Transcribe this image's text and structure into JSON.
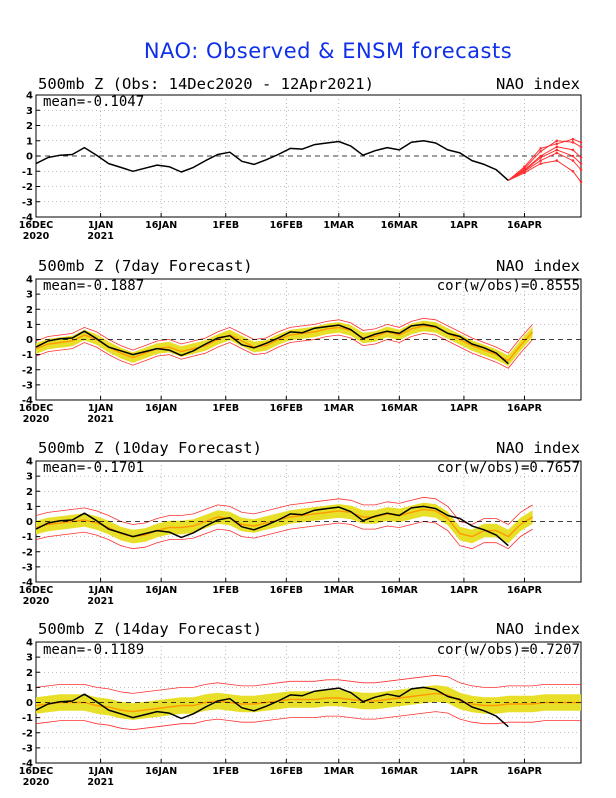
{
  "title": "NAO: Observed & ENSM forecasts",
  "panels": [
    {
      "title": "500mb Z (Obs: 14Dec2020 - 12Apr2021)",
      "right_label": "NAO index",
      "mean": "mean=-0.1047",
      "cor": ""
    },
    {
      "title": "500mb Z (7day Forecast)",
      "right_label": "NAO index",
      "mean": "mean=-0.1887",
      "cor": "cor(w/obs)=0.8555"
    },
    {
      "title": "500mb Z (10day Forecast)",
      "right_label": "NAO index",
      "mean": "mean=-0.1701",
      "cor": "cor(w/obs)=0.7657"
    },
    {
      "title": "500mb Z (14day Forecast)",
      "right_label": "NAO index",
      "mean": "mean=-0.1189",
      "cor": "cor(w/obs)=0.7207"
    }
  ],
  "colors": {
    "title": "#1030e8",
    "observed": "#000000",
    "forecast_members": "#ff3030",
    "ensemble_spread": "#e8e028",
    "ensemble_mean": "#ff9a00",
    "zero_line": "#000000"
  },
  "chart_data": [
    {
      "type": "line",
      "title": "500mb Z (Obs: 14Dec2020 - 12Apr2021)",
      "ylabel": "NAO index",
      "ylim": [
        -4,
        4
      ],
      "yticks": [
        "4",
        "3",
        "2",
        "1",
        "0",
        "-1",
        "-2",
        "-3",
        "-4"
      ],
      "xticks": [
        {
          "day": 0,
          "label": "16DEC",
          "sub": "2020"
        },
        {
          "day": 16,
          "label": "1JAN",
          "sub": "2021"
        },
        {
          "day": 31,
          "label": "16JAN",
          "sub": ""
        },
        {
          "day": 47,
          "label": "1FEB",
          "sub": ""
        },
        {
          "day": 62,
          "label": "16FEB",
          "sub": ""
        },
        {
          "day": 75,
          "label": "1MAR",
          "sub": ""
        },
        {
          "day": 90,
          "label": "16MAR",
          "sub": ""
        },
        {
          "day": 106,
          "label": "1APR",
          "sub": ""
        },
        {
          "day": 121,
          "label": "16APR",
          "sub": ""
        }
      ],
      "xlim": [
        0,
        135
      ],
      "grid": true,
      "observed": {
        "x": [
          0,
          3,
          6,
          9,
          12,
          15,
          18,
          21,
          24,
          27,
          30,
          33,
          36,
          39,
          42,
          45,
          48,
          51,
          54,
          57,
          60,
          63,
          66,
          69,
          72,
          75,
          78,
          81,
          84,
          87,
          90,
          93,
          96,
          99,
          102,
          105,
          108,
          111,
          114,
          117
        ],
        "y": [
          -0.5,
          -0.1,
          0.05,
          0.1,
          0.55,
          0.05,
          -0.5,
          -0.75,
          -1.0,
          -0.8,
          -0.6,
          -0.7,
          -1.05,
          -0.75,
          -0.3,
          0.1,
          0.25,
          -0.35,
          -0.55,
          -0.25,
          0.1,
          0.5,
          0.45,
          0.75,
          0.85,
          0.95,
          0.65,
          0.05,
          0.35,
          0.55,
          0.4,
          0.9,
          1.0,
          0.85,
          0.4,
          0.2,
          -0.3,
          -0.55,
          -0.9,
          -1.6
        ]
      },
      "forecast_members": [
        {
          "x": [
            117,
            121,
            125,
            129,
            133,
            135
          ],
          "y": [
            -1.6,
            -0.8,
            0.3,
            1.0,
            0.9,
            0.6
          ]
        },
        {
          "x": [
            117,
            121,
            125,
            129,
            133,
            135
          ],
          "y": [
            -1.6,
            -0.9,
            0.0,
            0.6,
            0.4,
            -0.1
          ]
        },
        {
          "x": [
            117,
            121,
            125,
            129,
            133,
            135
          ],
          "y": [
            -1.6,
            -1.0,
            -0.3,
            0.2,
            -0.3,
            -0.9
          ]
        },
        {
          "x": [
            117,
            121,
            125,
            129,
            133,
            135
          ],
          "y": [
            -1.6,
            -1.1,
            -0.5,
            -0.3,
            -1.0,
            -1.7
          ]
        },
        {
          "x": [
            117,
            121,
            125,
            129,
            133,
            135
          ],
          "y": [
            -1.6,
            -0.7,
            0.5,
            0.8,
            1.1,
            0.9
          ]
        },
        {
          "x": [
            117,
            121,
            125,
            129,
            133,
            135
          ],
          "y": [
            -1.6,
            -0.95,
            -0.1,
            0.4,
            0.0,
            -0.5
          ]
        }
      ]
    },
    {
      "type": "line",
      "title": "500mb Z (7day Forecast)",
      "ylabel": "NAO index",
      "ylim": [
        -4,
        4
      ],
      "yticks": [
        "4",
        "3",
        "2",
        "1",
        "0",
        "-1",
        "-2",
        "-3",
        "-4"
      ],
      "xticks": [
        {
          "day": 0,
          "label": "16DEC",
          "sub": "2020"
        },
        {
          "day": 16,
          "label": "1JAN",
          "sub": "2021"
        },
        {
          "day": 31,
          "label": "16JAN",
          "sub": ""
        },
        {
          "day": 47,
          "label": "1FEB",
          "sub": ""
        },
        {
          "day": 62,
          "label": "16FEB",
          "sub": ""
        },
        {
          "day": 75,
          "label": "1MAR",
          "sub": ""
        },
        {
          "day": 90,
          "label": "16MAR",
          "sub": ""
        },
        {
          "day": 106,
          "label": "1APR",
          "sub": ""
        },
        {
          "day": 121,
          "label": "16APR",
          "sub": ""
        }
      ],
      "xlim": [
        0,
        135
      ],
      "grid": true,
      "observed": {
        "x": [
          0,
          3,
          6,
          9,
          12,
          15,
          18,
          21,
          24,
          27,
          30,
          33,
          36,
          39,
          42,
          45,
          48,
          51,
          54,
          57,
          60,
          63,
          66,
          69,
          72,
          75,
          78,
          81,
          84,
          87,
          90,
          93,
          96,
          99,
          102,
          105,
          108,
          111,
          114,
          117
        ],
        "y": [
          -0.5,
          -0.1,
          0.05,
          0.1,
          0.55,
          0.05,
          -0.5,
          -0.75,
          -1.0,
          -0.8,
          -0.6,
          -0.7,
          -1.05,
          -0.75,
          -0.3,
          0.1,
          0.25,
          -0.35,
          -0.55,
          -0.25,
          0.1,
          0.5,
          0.45,
          0.75,
          0.85,
          0.95,
          0.65,
          0.05,
          0.35,
          0.55,
          0.4,
          0.9,
          1.0,
          0.85,
          0.4,
          0.2,
          -0.3,
          -0.55,
          -0.9,
          -1.6
        ]
      },
      "ensemble_mean": {
        "x": [
          0,
          3,
          6,
          9,
          12,
          15,
          18,
          21,
          24,
          27,
          30,
          33,
          36,
          39,
          42,
          45,
          48,
          51,
          54,
          57,
          60,
          63,
          66,
          69,
          72,
          75,
          78,
          81,
          84,
          87,
          90,
          93,
          96,
          99,
          102,
          105,
          108,
          111,
          114,
          117,
          120,
          123
        ],
        "y": [
          -0.6,
          -0.3,
          -0.2,
          -0.1,
          0.3,
          0.0,
          -0.5,
          -0.9,
          -1.2,
          -0.9,
          -0.6,
          -0.5,
          -0.8,
          -0.6,
          -0.4,
          0.0,
          0.3,
          -0.1,
          -0.5,
          -0.4,
          0.0,
          0.3,
          0.4,
          0.5,
          0.7,
          0.8,
          0.6,
          0.1,
          0.2,
          0.5,
          0.3,
          0.7,
          0.9,
          0.8,
          0.4,
          0.0,
          -0.4,
          -0.7,
          -1.0,
          -1.4,
          -0.4,
          0.5
        ]
      },
      "spread_half_width": 0.35,
      "members_band_half_width": 0.5
    },
    {
      "type": "line",
      "title": "500mb Z (10day Forecast)",
      "ylabel": "NAO index",
      "ylim": [
        -4,
        4
      ],
      "yticks": [
        "4",
        "3",
        "2",
        "1",
        "0",
        "-1",
        "-2",
        "-3",
        "-4"
      ],
      "xticks": [
        {
          "day": 0,
          "label": "16DEC",
          "sub": "2020"
        },
        {
          "day": 16,
          "label": "1JAN",
          "sub": "2021"
        },
        {
          "day": 31,
          "label": "16JAN",
          "sub": ""
        },
        {
          "day": 47,
          "label": "1FEB",
          "sub": ""
        },
        {
          "day": 62,
          "label": "16FEB",
          "sub": ""
        },
        {
          "day": 75,
          "label": "1MAR",
          "sub": ""
        },
        {
          "day": 90,
          "label": "16MAR",
          "sub": ""
        },
        {
          "day": 106,
          "label": "1APR",
          "sub": ""
        },
        {
          "day": 121,
          "label": "16APR",
          "sub": ""
        }
      ],
      "xlim": [
        0,
        135
      ],
      "grid": true,
      "observed": {
        "x": [
          0,
          3,
          6,
          9,
          12,
          15,
          18,
          21,
          24,
          27,
          30,
          33,
          36,
          39,
          42,
          45,
          48,
          51,
          54,
          57,
          60,
          63,
          66,
          69,
          72,
          75,
          78,
          81,
          84,
          87,
          90,
          93,
          96,
          99,
          102,
          105,
          108,
          111,
          114,
          117
        ],
        "y": [
          -0.5,
          -0.1,
          0.05,
          0.1,
          0.55,
          0.05,
          -0.5,
          -0.75,
          -1.0,
          -0.8,
          -0.6,
          -0.7,
          -1.05,
          -0.75,
          -0.3,
          0.1,
          0.25,
          -0.35,
          -0.55,
          -0.25,
          0.1,
          0.5,
          0.45,
          0.75,
          0.85,
          0.95,
          0.65,
          0.05,
          0.35,
          0.55,
          0.4,
          0.9,
          1.0,
          0.85,
          0.4,
          0.2,
          -0.3,
          -0.55,
          -0.9,
          -1.6
        ]
      },
      "ensemble_mean": {
        "x": [
          0,
          3,
          6,
          9,
          12,
          15,
          18,
          21,
          24,
          27,
          30,
          33,
          36,
          39,
          42,
          45,
          48,
          51,
          54,
          57,
          60,
          63,
          66,
          69,
          72,
          75,
          78,
          81,
          84,
          87,
          90,
          93,
          96,
          99,
          102,
          105,
          108,
          111,
          114,
          117,
          120,
          123
        ],
        "y": [
          -0.4,
          -0.2,
          -0.1,
          0.0,
          0.1,
          -0.1,
          -0.4,
          -0.8,
          -1.0,
          -0.9,
          -0.6,
          -0.4,
          -0.4,
          -0.3,
          0.0,
          0.3,
          0.2,
          -0.2,
          -0.3,
          -0.1,
          0.1,
          0.3,
          0.4,
          0.5,
          0.6,
          0.7,
          0.6,
          0.3,
          0.3,
          0.5,
          0.4,
          0.6,
          0.8,
          0.7,
          0.2,
          -0.8,
          -1.0,
          -0.6,
          -0.6,
          -1.0,
          -0.2,
          0.3
        ]
      },
      "spread_half_width": 0.45,
      "members_band_half_width": 0.8
    },
    {
      "type": "line",
      "title": "500mb Z (14day Forecast)",
      "ylabel": "NAO index",
      "ylim": [
        -4,
        4
      ],
      "yticks": [
        "4",
        "3",
        "2",
        "1",
        "0",
        "-1",
        "-2",
        "-3",
        "-4"
      ],
      "xticks": [
        {
          "day": 0,
          "label": "16DEC",
          "sub": "2020"
        },
        {
          "day": 16,
          "label": "1JAN",
          "sub": "2021"
        },
        {
          "day": 31,
          "label": "16JAN",
          "sub": ""
        },
        {
          "day": 47,
          "label": "1FEB",
          "sub": ""
        },
        {
          "day": 62,
          "label": "16FEB",
          "sub": ""
        },
        {
          "day": 75,
          "label": "1MAR",
          "sub": ""
        },
        {
          "day": 90,
          "label": "16MAR",
          "sub": ""
        },
        {
          "day": 106,
          "label": "1APR",
          "sub": ""
        },
        {
          "day": 121,
          "label": "16APR",
          "sub": ""
        }
      ],
      "xlim": [
        0,
        135
      ],
      "grid": true,
      "observed": {
        "x": [
          0,
          3,
          6,
          9,
          12,
          15,
          18,
          21,
          24,
          27,
          30,
          33,
          36,
          39,
          42,
          45,
          48,
          51,
          54,
          57,
          60,
          63,
          66,
          69,
          72,
          75,
          78,
          81,
          84,
          87,
          90,
          93,
          96,
          99,
          102,
          105,
          108,
          111,
          114,
          117
        ],
        "y": [
          -0.5,
          -0.1,
          0.05,
          0.1,
          0.55,
          0.05,
          -0.5,
          -0.75,
          -1.0,
          -0.8,
          -0.6,
          -0.7,
          -1.05,
          -0.75,
          -0.3,
          0.1,
          0.25,
          -0.35,
          -0.55,
          -0.25,
          0.1,
          0.5,
          0.45,
          0.75,
          0.85,
          0.95,
          0.65,
          0.05,
          0.35,
          0.55,
          0.4,
          0.9,
          1.0,
          0.85,
          0.4,
          0.2,
          -0.3,
          -0.55,
          -0.9,
          -1.6
        ]
      },
      "ensemble_mean": {
        "x": [
          0,
          3,
          6,
          9,
          12,
          15,
          18,
          21,
          24,
          27,
          30,
          33,
          36,
          39,
          42,
          45,
          48,
          51,
          54,
          57,
          60,
          63,
          66,
          69,
          72,
          75,
          78,
          81,
          84,
          87,
          90,
          93,
          96,
          99,
          102,
          105,
          108,
          111,
          114,
          117,
          120,
          123,
          126,
          129,
          132,
          135
        ],
        "y": [
          -0.2,
          -0.1,
          0.0,
          0.0,
          0.0,
          -0.2,
          -0.3,
          -0.5,
          -0.6,
          -0.5,
          -0.4,
          -0.3,
          -0.2,
          -0.2,
          0.0,
          0.1,
          0.0,
          -0.1,
          -0.1,
          0.0,
          0.1,
          0.2,
          0.2,
          0.2,
          0.3,
          0.3,
          0.2,
          0.1,
          0.1,
          0.2,
          0.3,
          0.4,
          0.5,
          0.6,
          0.5,
          0.1,
          -0.1,
          -0.2,
          -0.2,
          -0.1,
          -0.1,
          -0.1,
          0.0,
          0.0,
          0.0,
          0.0
        ]
      },
      "spread_half_width": 0.55,
      "members_band_half_width": 1.2
    }
  ]
}
